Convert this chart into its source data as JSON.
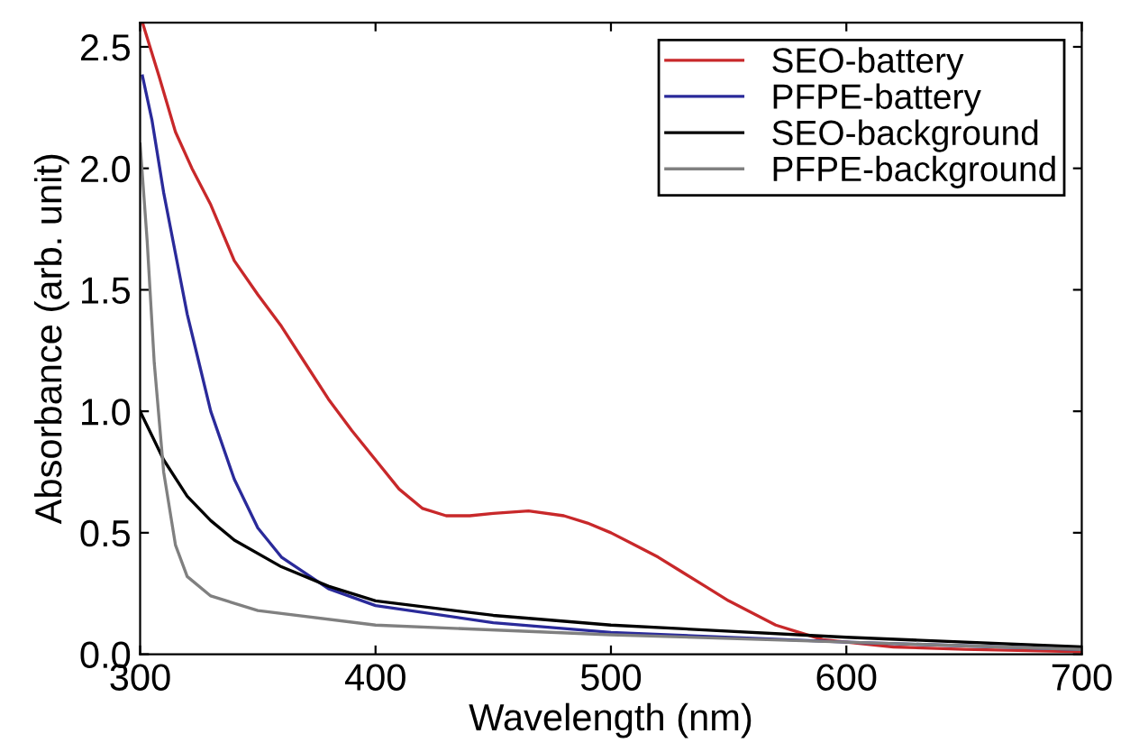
{
  "chart_data": {
    "type": "line",
    "xlabel": "Wavelength (nm)",
    "ylabel": "Absorbance (arb. unit)",
    "xlim": [
      300,
      700
    ],
    "ylim": [
      0,
      2.6
    ],
    "xticks": [
      300,
      400,
      500,
      600,
      700
    ],
    "yticks": [
      {
        "value": 0,
        "label": "0.0"
      },
      {
        "value": 0.5,
        "label": "0.5"
      },
      {
        "value": 1,
        "label": "1.0"
      },
      {
        "value": 1.5,
        "label": "1.5"
      },
      {
        "value": 2,
        "label": "2.0"
      },
      {
        "value": 2.5,
        "label": "2.5"
      }
    ],
    "grid": false,
    "legend": "top right",
    "marker": "none",
    "line_style": "solid",
    "series": [
      {
        "name": "SEO-battery",
        "color": "#c8282a",
        "x": [
          301,
          308,
          315,
          322,
          330,
          340,
          350,
          360,
          370,
          380,
          390,
          400,
          410,
          420,
          430,
          440,
          450,
          465,
          480,
          490,
          500,
          510,
          520,
          530,
          540,
          550,
          560,
          570,
          580,
          590,
          600,
          620,
          650,
          700
        ],
        "values": [
          2.6,
          2.38,
          2.15,
          2.0,
          1.85,
          1.62,
          1.48,
          1.35,
          1.2,
          1.05,
          0.92,
          0.8,
          0.68,
          0.6,
          0.57,
          0.57,
          0.58,
          0.59,
          0.57,
          0.54,
          0.5,
          0.45,
          0.4,
          0.34,
          0.28,
          0.22,
          0.17,
          0.12,
          0.09,
          0.06,
          0.05,
          0.03,
          0.02,
          0.01
        ]
      },
      {
        "name": "PFPE-battery",
        "color": "#2a2a9a",
        "x": [
          301,
          305,
          310,
          315,
          320,
          325,
          330,
          340,
          350,
          360,
          380,
          400,
          450,
          500,
          600,
          700
        ],
        "values": [
          2.38,
          2.2,
          1.9,
          1.65,
          1.4,
          1.2,
          1.0,
          0.72,
          0.52,
          0.4,
          0.27,
          0.2,
          0.13,
          0.09,
          0.05,
          0.02
        ]
      },
      {
        "name": "SEO-background",
        "color": "#000000",
        "x": [
          300,
          305,
          310,
          320,
          330,
          340,
          360,
          380,
          400,
          450,
          500,
          600,
          700
        ],
        "values": [
          1.0,
          0.9,
          0.8,
          0.65,
          0.55,
          0.47,
          0.36,
          0.28,
          0.22,
          0.16,
          0.12,
          0.07,
          0.03
        ]
      },
      {
        "name": "PFPE-background",
        "color": "#808080",
        "x": [
          300,
          303,
          306,
          310,
          315,
          320,
          330,
          350,
          400,
          500,
          600,
          700
        ],
        "values": [
          2.1,
          1.7,
          1.2,
          0.75,
          0.45,
          0.32,
          0.24,
          0.18,
          0.12,
          0.08,
          0.05,
          0.02
        ]
      }
    ]
  }
}
